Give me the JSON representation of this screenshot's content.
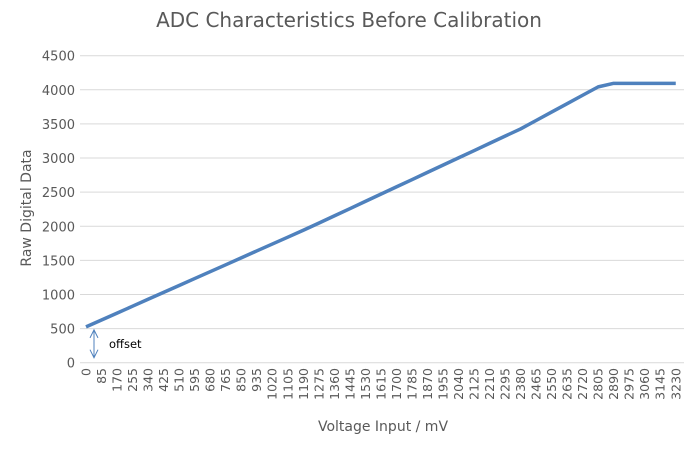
{
  "chart_data": {
    "type": "line",
    "title": "ADC Characteristics Before Calibration",
    "xlabel": "Voltage Input / mV",
    "ylabel": "Raw Digital Data",
    "ylim": [
      0,
      4500
    ],
    "yticks": [
      0,
      500,
      1000,
      1500,
      2000,
      2500,
      3000,
      3500,
      4000,
      4500
    ],
    "grid": true,
    "legend": "none",
    "line_color": "#4f81bd",
    "categories": [
      0,
      85,
      170,
      255,
      340,
      425,
      510,
      595,
      680,
      765,
      850,
      935,
      1020,
      1105,
      1190,
      1275,
      1360,
      1445,
      1530,
      1615,
      1700,
      1785,
      1870,
      1955,
      2040,
      2125,
      2210,
      2295,
      2380,
      2465,
      2550,
      2635,
      2720,
      2805,
      2890,
      2975,
      3060,
      3145,
      3230
    ],
    "series": [
      {
        "values": [
          525,
          626,
          727,
          828,
          930,
          1031,
          1132,
          1233,
          1334,
          1435,
          1537,
          1638,
          1739,
          1840,
          1941,
          2046,
          2152,
          2258,
          2365,
          2471,
          2577,
          2683,
          2790,
          2896,
          3002,
          3108,
          3215,
          3321,
          3427,
          3550,
          3674,
          3797,
          3920,
          4043,
          4095,
          4095,
          4095,
          4095,
          4095
        ]
      }
    ],
    "annotations": [
      {
        "text": "offset",
        "from": 0,
        "to": 525
      }
    ]
  }
}
